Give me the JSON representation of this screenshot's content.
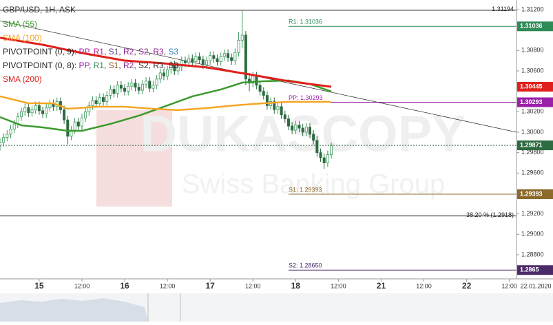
{
  "chart_data": {
    "type": "candlestick",
    "title": "GBP/USD, 1H, ASK",
    "watermark": {
      "brand": "DUKASCOPY",
      "tagline": "Swiss Banking Group"
    },
    "xlim": [
      0,
      145
    ],
    "ylim": [
      1.28564,
      1.31294
    ],
    "xticks": [
      {
        "value": 11,
        "label": "15"
      },
      {
        "value": 23,
        "label": "12:00"
      },
      {
        "value": 35,
        "label": "16"
      },
      {
        "value": 47,
        "label": "12:00"
      },
      {
        "value": 59,
        "label": "17"
      },
      {
        "value": 71,
        "label": "12:00"
      },
      {
        "value": 83,
        "label": "18"
      },
      {
        "value": 95,
        "label": "12:00"
      },
      {
        "value": 107,
        "label": "21"
      },
      {
        "value": 119,
        "label": "12:00"
      },
      {
        "value": 131,
        "label": "22"
      },
      {
        "value": 143,
        "label": "12:00"
      }
    ],
    "date_label": "22.01.2020",
    "yticks": [
      {
        "value": 1.312,
        "label": "1.31200"
      },
      {
        "value": 1.308,
        "label": "1.30800"
      },
      {
        "value": 1.306,
        "label": "1.30600"
      },
      {
        "value": 1.302,
        "label": "1.30200"
      },
      {
        "value": 1.3,
        "label": "1.30000"
      },
      {
        "value": 1.298,
        "label": "1.29800"
      },
      {
        "value": 1.296,
        "label": "1.29600"
      },
      {
        "value": 1.292,
        "label": "1.29200"
      },
      {
        "value": 1.29,
        "label": "1.29000"
      },
      {
        "value": 1.288,
        "label": "1.28800"
      }
    ],
    "candles": {
      "up_color": "#3a9a5b",
      "down_color": "#2d6b40",
      "x": [
        0,
        1,
        2,
        3,
        4,
        5,
        6,
        7,
        8,
        9,
        10,
        11,
        12,
        13,
        14,
        15,
        16,
        17,
        18,
        19,
        20,
        21,
        22,
        23,
        24,
        25,
        26,
        27,
        28,
        29,
        30,
        31,
        32,
        33,
        34,
        35,
        36,
        37,
        38,
        39,
        40,
        41,
        42,
        43,
        44,
        45,
        46,
        47,
        48,
        49,
        50,
        51,
        52,
        53,
        54,
        55,
        56,
        57,
        58,
        59,
        60,
        61,
        62,
        63,
        64,
        65,
        66,
        67,
        68,
        69,
        70,
        71,
        72,
        73,
        74,
        75,
        76,
        77,
        78,
        79,
        80,
        81,
        82,
        83,
        84,
        85,
        86,
        87,
        88,
        89,
        90,
        91,
        92,
        93
      ],
      "open": [
        1.2986,
        1.299,
        1.2995,
        1.2998,
        1.3003,
        1.3008,
        1.3015,
        1.302,
        1.3024,
        1.3019,
        1.3022,
        1.3026,
        1.3021,
        1.3018,
        1.3024,
        1.3028,
        1.3025,
        1.303,
        1.3022,
        1.3012,
        1.2996,
        1.3002,
        1.301,
        1.3006,
        1.3014,
        1.302,
        1.3026,
        1.3031,
        1.3028,
        1.3034,
        1.303,
        1.3036,
        1.3042,
        1.3038,
        1.3046,
        1.3043,
        1.304,
        1.3045,
        1.3048,
        1.3044,
        1.3041,
        1.3047,
        1.305,
        1.3043,
        1.3046,
        1.3052,
        1.3058,
        1.3055,
        1.3061,
        1.3066,
        1.306,
        1.3064,
        1.307,
        1.3068,
        1.3072,
        1.3069,
        1.3074,
        1.3071,
        1.3066,
        1.307,
        1.3075,
        1.3072,
        1.3069,
        1.3074,
        1.3077,
        1.3073,
        1.307,
        1.3078,
        1.309,
        1.3095,
        1.3052,
        1.3048,
        1.3055,
        1.3046,
        1.304,
        1.3036,
        1.3026,
        1.303,
        1.3022,
        1.3025,
        1.3017,
        1.3013,
        1.3006,
        1.3002,
        1.3007,
        1.3004,
        1.3,
        1.3005,
        1.2998,
        1.2992,
        1.298,
        1.2975,
        1.297,
        1.2978
      ],
      "high": [
        1.2994,
        1.2999,
        1.3002,
        1.3007,
        1.3012,
        1.3019,
        1.3024,
        1.3028,
        1.3028,
        1.3026,
        1.303,
        1.303,
        1.3025,
        1.3028,
        1.3032,
        1.3032,
        1.3034,
        1.3034,
        1.3026,
        1.3016,
        1.3006,
        1.3014,
        1.3014,
        1.3018,
        1.3024,
        1.303,
        1.3035,
        1.3035,
        1.3038,
        1.3038,
        1.304,
        1.3046,
        1.3046,
        1.305,
        1.305,
        1.3047,
        1.3049,
        1.3052,
        1.3052,
        1.3048,
        1.3051,
        1.3054,
        1.3054,
        1.305,
        1.3056,
        1.3062,
        1.3062,
        1.3065,
        1.307,
        1.307,
        1.3068,
        1.3074,
        1.3074,
        1.3076,
        1.3076,
        1.3078,
        1.3078,
        1.3075,
        1.3074,
        1.3079,
        1.3079,
        1.3076,
        1.3078,
        1.3081,
        1.3081,
        1.3077,
        1.3082,
        1.3098,
        1.31194,
        1.3099,
        1.3058,
        1.3059,
        1.3059,
        1.305,
        1.3044,
        1.304,
        1.3034,
        1.3034,
        1.3029,
        1.3029,
        1.3021,
        1.3017,
        1.301,
        1.3011,
        1.3011,
        1.3008,
        1.3009,
        1.3009,
        1.3002,
        1.2996,
        1.2984,
        1.2979,
        1.2982,
        1.299
      ],
      "low": [
        1.2982,
        1.2986,
        1.2991,
        1.2994,
        1.2999,
        1.3004,
        1.3011,
        1.3016,
        1.3015,
        1.3015,
        1.3018,
        1.3017,
        1.3014,
        1.3014,
        1.302,
        1.3021,
        1.3021,
        1.3018,
        1.3008,
        1.2988,
        1.2992,
        1.2998,
        1.3002,
        1.3002,
        1.301,
        1.3016,
        1.3022,
        1.3024,
        1.3024,
        1.3026,
        1.3026,
        1.3032,
        1.3034,
        1.3034,
        1.3039,
        1.3036,
        1.3036,
        1.3041,
        1.304,
        1.3037,
        1.3037,
        1.3043,
        1.3039,
        1.3039,
        1.3042,
        1.3048,
        1.3051,
        1.3051,
        1.3057,
        1.3056,
        1.3056,
        1.306,
        1.3064,
        1.3064,
        1.3065,
        1.3065,
        1.3067,
        1.3062,
        1.3062,
        1.3066,
        1.3068,
        1.3065,
        1.3065,
        1.307,
        1.3069,
        1.3066,
        1.3066,
        1.3074,
        1.3082,
        1.3046,
        1.304,
        1.3044,
        1.3042,
        1.3036,
        1.3032,
        1.3022,
        1.3022,
        1.3018,
        1.3018,
        1.3013,
        1.3009,
        1.3002,
        1.2998,
        1.2998,
        1.3,
        1.2996,
        1.2996,
        1.2994,
        1.2988,
        1.2976,
        1.2971,
        1.2964,
        1.2966,
        1.2974
      ],
      "close": [
        1.299,
        1.2995,
        1.2998,
        1.3003,
        1.3008,
        1.3015,
        1.302,
        1.3024,
        1.3019,
        1.3022,
        1.3026,
        1.3021,
        1.3018,
        1.3024,
        1.3028,
        1.3025,
        1.303,
        1.3022,
        1.3012,
        1.2996,
        1.3002,
        1.301,
        1.3006,
        1.3014,
        1.302,
        1.3026,
        1.3031,
        1.3028,
        1.3034,
        1.303,
        1.3036,
        1.3042,
        1.3038,
        1.3046,
        1.3043,
        1.304,
        1.3045,
        1.3048,
        1.3044,
        1.3041,
        1.3047,
        1.305,
        1.3043,
        1.3046,
        1.3052,
        1.3058,
        1.3055,
        1.3061,
        1.3066,
        1.306,
        1.3064,
        1.307,
        1.3068,
        1.3072,
        1.3069,
        1.3074,
        1.3071,
        1.3066,
        1.307,
        1.3075,
        1.3072,
        1.3069,
        1.3074,
        1.3077,
        1.3073,
        1.307,
        1.3078,
        1.309,
        1.3095,
        1.3052,
        1.3048,
        1.3055,
        1.3046,
        1.304,
        1.3036,
        1.3026,
        1.303,
        1.3022,
        1.3025,
        1.3017,
        1.3013,
        1.3006,
        1.3002,
        1.3007,
        1.3004,
        1.3,
        1.3005,
        1.2998,
        1.2992,
        1.298,
        1.2975,
        1.297,
        1.2978,
        1.29871
      ],
      "last_color": "#2d6b40"
    },
    "series": [
      {
        "name": "SMA (55)",
        "color": "#3a9a2a",
        "x": [
          0,
          6,
          12,
          19,
          23,
          31,
          39,
          46,
          54,
          62,
          68,
          74,
          81,
          87,
          93
        ],
        "values": [
          1.30148,
          1.30067,
          1.30047,
          1.30013,
          1.30013,
          1.30081,
          1.30162,
          1.30249,
          1.30351,
          1.30418,
          1.30485,
          1.30499,
          1.30506,
          1.30472,
          1.30398
        ]
      },
      {
        "name": "SMA (100)",
        "color": "#f5a623",
        "x": [
          0,
          8,
          15,
          19,
          27,
          35,
          43,
          50,
          58,
          66,
          74,
          81,
          93
        ],
        "values": [
          1.30351,
          1.30283,
          1.30283,
          1.30229,
          1.30249,
          1.30249,
          1.30229,
          1.30216,
          1.30236,
          1.30263,
          1.30283,
          1.30297,
          1.30297
        ]
      },
      {
        "name": "SMA (200)",
        "color": "#e0201b",
        "x": [
          0,
          12,
          23,
          35,
          46,
          58,
          70,
          81,
          93
        ],
        "values": [
          1.30924,
          1.30856,
          1.30775,
          1.30701,
          1.30674,
          1.30634,
          1.30566,
          1.30499,
          1.30445
        ]
      }
    ],
    "pivot_legends": [
      {
        "label": "PIVOTPOINT (0, 9):",
        "separator": ", ",
        "items": [
          {
            "text": "PP",
            "color": "#9b1fa8"
          },
          {
            "text": "R1",
            "color": "#c2188f"
          },
          {
            "text": "S1",
            "color": "#5b3a8a"
          },
          {
            "text": "R2",
            "color": "#8b1f8b"
          },
          {
            "text": "S2",
            "color": "#8b1f8b"
          },
          {
            "text": "R3",
            "color": "#8b1f8b"
          },
          {
            "text": "S3",
            "color": "#2f7fbf"
          }
        ]
      },
      {
        "label": "PIVOTPOINT (0, 8):",
        "separator": ", ",
        "items": [
          {
            "text": "PP",
            "color": "#9b1fa8"
          },
          {
            "text": "R1",
            "color": "#2e8b57"
          },
          {
            "text": "S1",
            "color": "#8b5a2b"
          },
          {
            "text": "R2",
            "color": "#8b1f8b"
          },
          {
            "text": "S2",
            "color": "#333333"
          },
          {
            "text": "R3",
            "color": "#333333"
          },
          {
            "text": "S3",
            "color": "#333333"
          }
        ]
      }
    ],
    "trendline": {
      "color": "#333333",
      "x": [
        0,
        145
      ],
      "values": [
        1.3109,
        1.3
      ]
    },
    "levels": [
      {
        "label": "R1: 1.31036",
        "value": 1.31036,
        "from": 81,
        "color": "#2e8b57"
      },
      {
        "label": "PP: 1.30293",
        "value": 1.30293,
        "from": 81,
        "color": "#9b1fa8"
      },
      {
        "label": "S1: 1.29393",
        "value": 1.29393,
        "from": 81,
        "color": "#8b6a2b"
      },
      {
        "label": "S2: 1.28650",
        "value": 1.2865,
        "from": 81,
        "color": "#4b2a6a"
      }
    ],
    "full_lines": [
      {
        "label": "1.31194",
        "value": 1.31194
      },
      {
        "label": "38.20 % (1.2918)",
        "value": 1.2918
      }
    ]
  }
}
